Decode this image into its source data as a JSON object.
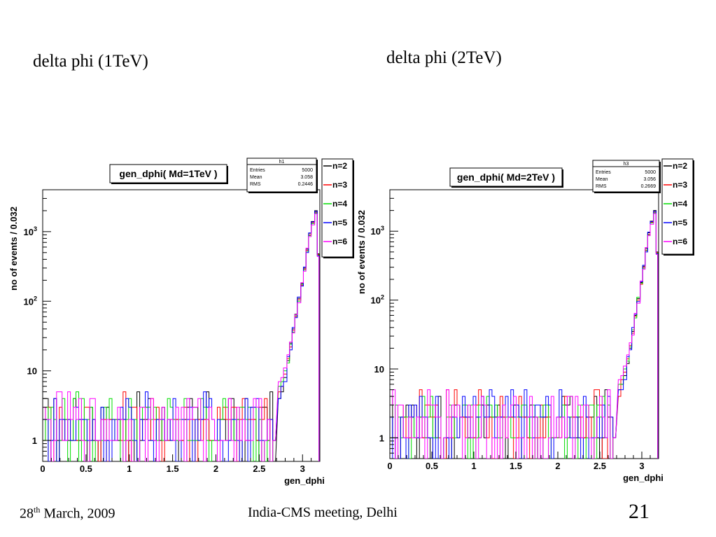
{
  "slide": {
    "title_left": "delta phi (1TeV)",
    "title_right": "delta phi (2TeV)",
    "footer_date_day": "28",
    "footer_date_sup": "th",
    "footer_date_rest": " March, 2009",
    "footer_center": "India-CMS meeting, Delhi",
    "page_number": "21"
  },
  "chart_data": [
    {
      "type": "line",
      "title": "gen_dphi( Md=1TeV )",
      "xlabel": "gen_dphi",
      "ylabel": "no of events / 0.032",
      "yscale": "log",
      "xlim": [
        0,
        3.2
      ],
      "ylim": [
        0.5,
        4000
      ],
      "xticks": [
        "0",
        "0.5",
        "1",
        "1.5",
        "2",
        "2.5",
        "3"
      ],
      "yticks": [
        "1",
        "10",
        "10^2",
        "10^3"
      ],
      "stats": {
        "name": "h1",
        "entries": "5000",
        "mean": "3.058",
        "rms": "0.2446"
      },
      "legend_position": "top-right",
      "series": [
        {
          "name": "n=2",
          "color": "#000000",
          "tail": [
            {
              "x": 2.72,
              "y": 4
            },
            {
              "x": 2.75,
              "y": 5
            },
            {
              "x": 2.78,
              "y": 8
            },
            {
              "x": 2.82,
              "y": 14
            },
            {
              "x": 2.85,
              "y": 25
            },
            {
              "x": 2.88,
              "y": 40
            },
            {
              "x": 2.91,
              "y": 65
            },
            {
              "x": 2.94,
              "y": 110
            },
            {
              "x": 2.98,
              "y": 180
            },
            {
              "x": 3.01,
              "y": 300
            },
            {
              "x": 3.04,
              "y": 560
            },
            {
              "x": 3.07,
              "y": 950
            },
            {
              "x": 3.1,
              "y": 1400
            },
            {
              "x": 3.14,
              "y": 2000
            },
            {
              "x": 3.17,
              "y": 480
            }
          ]
        },
        {
          "name": "n=3",
          "color": "#ff0000",
          "tail": [
            {
              "x": 2.72,
              "y": 5
            },
            {
              "x": 2.75,
              "y": 6
            },
            {
              "x": 2.78,
              "y": 9
            },
            {
              "x": 2.82,
              "y": 15
            },
            {
              "x": 2.85,
              "y": 22
            },
            {
              "x": 2.88,
              "y": 38
            },
            {
              "x": 2.91,
              "y": 60
            },
            {
              "x": 2.94,
              "y": 105
            },
            {
              "x": 2.98,
              "y": 170
            },
            {
              "x": 3.01,
              "y": 290
            },
            {
              "x": 3.04,
              "y": 540
            },
            {
              "x": 3.07,
              "y": 900
            },
            {
              "x": 3.1,
              "y": 1350
            },
            {
              "x": 3.14,
              "y": 1900
            },
            {
              "x": 3.17,
              "y": 470
            }
          ]
        },
        {
          "name": "n=4",
          "color": "#00dd00",
          "tail": [
            {
              "x": 2.72,
              "y": 6
            },
            {
              "x": 2.75,
              "y": 7
            },
            {
              "x": 2.78,
              "y": 10
            },
            {
              "x": 2.82,
              "y": 13
            },
            {
              "x": 2.85,
              "y": 24
            },
            {
              "x": 2.88,
              "y": 36
            },
            {
              "x": 2.91,
              "y": 62
            },
            {
              "x": 2.94,
              "y": 100
            },
            {
              "x": 2.98,
              "y": 175
            },
            {
              "x": 3.01,
              "y": 280
            },
            {
              "x": 3.04,
              "y": 520
            },
            {
              "x": 3.07,
              "y": 880
            },
            {
              "x": 3.1,
              "y": 1300
            },
            {
              "x": 3.14,
              "y": 1850
            },
            {
              "x": 3.17,
              "y": 460
            }
          ]
        },
        {
          "name": "n=5",
          "color": "#0000ff",
          "tail": [
            {
              "x": 2.72,
              "y": 4
            },
            {
              "x": 2.75,
              "y": 6
            },
            {
              "x": 2.78,
              "y": 7
            },
            {
              "x": 2.82,
              "y": 16
            },
            {
              "x": 2.85,
              "y": 20
            },
            {
              "x": 2.88,
              "y": 42
            },
            {
              "x": 2.91,
              "y": 58
            },
            {
              "x": 2.94,
              "y": 115
            },
            {
              "x": 2.98,
              "y": 165
            },
            {
              "x": 3.01,
              "y": 310
            },
            {
              "x": 3.04,
              "y": 500
            },
            {
              "x": 3.07,
              "y": 960
            },
            {
              "x": 3.1,
              "y": 1380
            },
            {
              "x": 3.14,
              "y": 1950
            },
            {
              "x": 3.17,
              "y": 450
            }
          ]
        },
        {
          "name": "n=6",
          "color": "#ff00ff",
          "tail": [
            {
              "x": 2.72,
              "y": 7
            },
            {
              "x": 2.75,
              "y": 8
            },
            {
              "x": 2.78,
              "y": 11
            },
            {
              "x": 2.82,
              "y": 17
            },
            {
              "x": 2.85,
              "y": 26
            },
            {
              "x": 2.88,
              "y": 35
            },
            {
              "x": 2.91,
              "y": 64
            },
            {
              "x": 2.94,
              "y": 95
            },
            {
              "x": 2.98,
              "y": 185
            },
            {
              "x": 3.01,
              "y": 270
            },
            {
              "x": 3.04,
              "y": 580
            },
            {
              "x": 3.07,
              "y": 850
            },
            {
              "x": 3.1,
              "y": 1250
            },
            {
              "x": 3.14,
              "y": 1800
            },
            {
              "x": 3.17,
              "y": 440
            }
          ]
        }
      ]
    },
    {
      "type": "line",
      "title": "gen_dphi( Md=2TeV )",
      "xlabel": "gen_dphi",
      "ylabel": "no of events / 0.032",
      "yscale": "log",
      "xlim": [
        0,
        3.2
      ],
      "ylim": [
        0.5,
        4000
      ],
      "xticks": [
        "0",
        "0.5",
        "1",
        "1.5",
        "2",
        "2.5",
        "3"
      ],
      "yticks": [
        "1",
        "10",
        "10^2",
        "10^3"
      ],
      "stats": {
        "name": "h3",
        "entries": "5000",
        "mean": "3.056",
        "rms": "0.2669"
      },
      "legend_position": "top-right",
      "series": [
        {
          "name": "n=2",
          "color": "#000000",
          "tail": [
            {
              "x": 2.72,
              "y": 5
            },
            {
              "x": 2.75,
              "y": 6
            },
            {
              "x": 2.78,
              "y": 8
            },
            {
              "x": 2.82,
              "y": 12
            },
            {
              "x": 2.85,
              "y": 20
            },
            {
              "x": 2.88,
              "y": 35
            },
            {
              "x": 2.91,
              "y": 60
            },
            {
              "x": 2.94,
              "y": 105
            },
            {
              "x": 2.98,
              "y": 180
            },
            {
              "x": 3.01,
              "y": 310
            },
            {
              "x": 3.04,
              "y": 560
            },
            {
              "x": 3.07,
              "y": 950
            },
            {
              "x": 3.1,
              "y": 1400
            },
            {
              "x": 3.14,
              "y": 2000
            },
            {
              "x": 3.17,
              "y": 500
            }
          ]
        },
        {
          "name": "n=3",
          "color": "#ff0000",
          "tail": [
            {
              "x": 2.72,
              "y": 4
            },
            {
              "x": 2.75,
              "y": 7
            },
            {
              "x": 2.78,
              "y": 9
            },
            {
              "x": 2.82,
              "y": 14
            },
            {
              "x": 2.85,
              "y": 22
            },
            {
              "x": 2.88,
              "y": 33
            },
            {
              "x": 2.91,
              "y": 58
            },
            {
              "x": 2.94,
              "y": 100
            },
            {
              "x": 2.98,
              "y": 170
            },
            {
              "x": 3.01,
              "y": 300
            },
            {
              "x": 3.04,
              "y": 530
            },
            {
              "x": 3.07,
              "y": 900
            },
            {
              "x": 3.1,
              "y": 1350
            },
            {
              "x": 3.14,
              "y": 1900
            },
            {
              "x": 3.17,
              "y": 490
            }
          ]
        },
        {
          "name": "n=4",
          "color": "#00dd00",
          "tail": [
            {
              "x": 2.72,
              "y": 6
            },
            {
              "x": 2.75,
              "y": 6
            },
            {
              "x": 2.78,
              "y": 10
            },
            {
              "x": 2.82,
              "y": 13
            },
            {
              "x": 2.85,
              "y": 21
            },
            {
              "x": 2.88,
              "y": 37
            },
            {
              "x": 2.91,
              "y": 55
            },
            {
              "x": 2.94,
              "y": 110
            },
            {
              "x": 2.98,
              "y": 175
            },
            {
              "x": 3.01,
              "y": 290
            },
            {
              "x": 3.04,
              "y": 520
            },
            {
              "x": 3.07,
              "y": 880
            },
            {
              "x": 3.1,
              "y": 1320
            },
            {
              "x": 3.14,
              "y": 1850
            },
            {
              "x": 3.17,
              "y": 480
            }
          ]
        },
        {
          "name": "n=5",
          "color": "#0000ff",
          "tail": [
            {
              "x": 2.72,
              "y": 5
            },
            {
              "x": 2.75,
              "y": 5
            },
            {
              "x": 2.78,
              "y": 7
            },
            {
              "x": 2.82,
              "y": 15
            },
            {
              "x": 2.85,
              "y": 19
            },
            {
              "x": 2.88,
              "y": 40
            },
            {
              "x": 2.91,
              "y": 62
            },
            {
              "x": 2.94,
              "y": 95
            },
            {
              "x": 2.98,
              "y": 185
            },
            {
              "x": 3.01,
              "y": 320
            },
            {
              "x": 3.04,
              "y": 500
            },
            {
              "x": 3.07,
              "y": 970
            },
            {
              "x": 3.1,
              "y": 1380
            },
            {
              "x": 3.14,
              "y": 1950
            },
            {
              "x": 3.17,
              "y": 470
            }
          ]
        },
        {
          "name": "n=6",
          "color": "#ff00ff",
          "tail": [
            {
              "x": 2.72,
              "y": 7
            },
            {
              "x": 2.75,
              "y": 8
            },
            {
              "x": 2.78,
              "y": 11
            },
            {
              "x": 2.82,
              "y": 16
            },
            {
              "x": 2.85,
              "y": 24
            },
            {
              "x": 2.88,
              "y": 31
            },
            {
              "x": 2.91,
              "y": 64
            },
            {
              "x": 2.94,
              "y": 90
            },
            {
              "x": 2.98,
              "y": 190
            },
            {
              "x": 3.01,
              "y": 280
            },
            {
              "x": 3.04,
              "y": 580
            },
            {
              "x": 3.07,
              "y": 860
            },
            {
              "x": 3.1,
              "y": 1260
            },
            {
              "x": 3.14,
              "y": 1800
            },
            {
              "x": 3.17,
              "y": 460
            }
          ]
        }
      ]
    }
  ]
}
